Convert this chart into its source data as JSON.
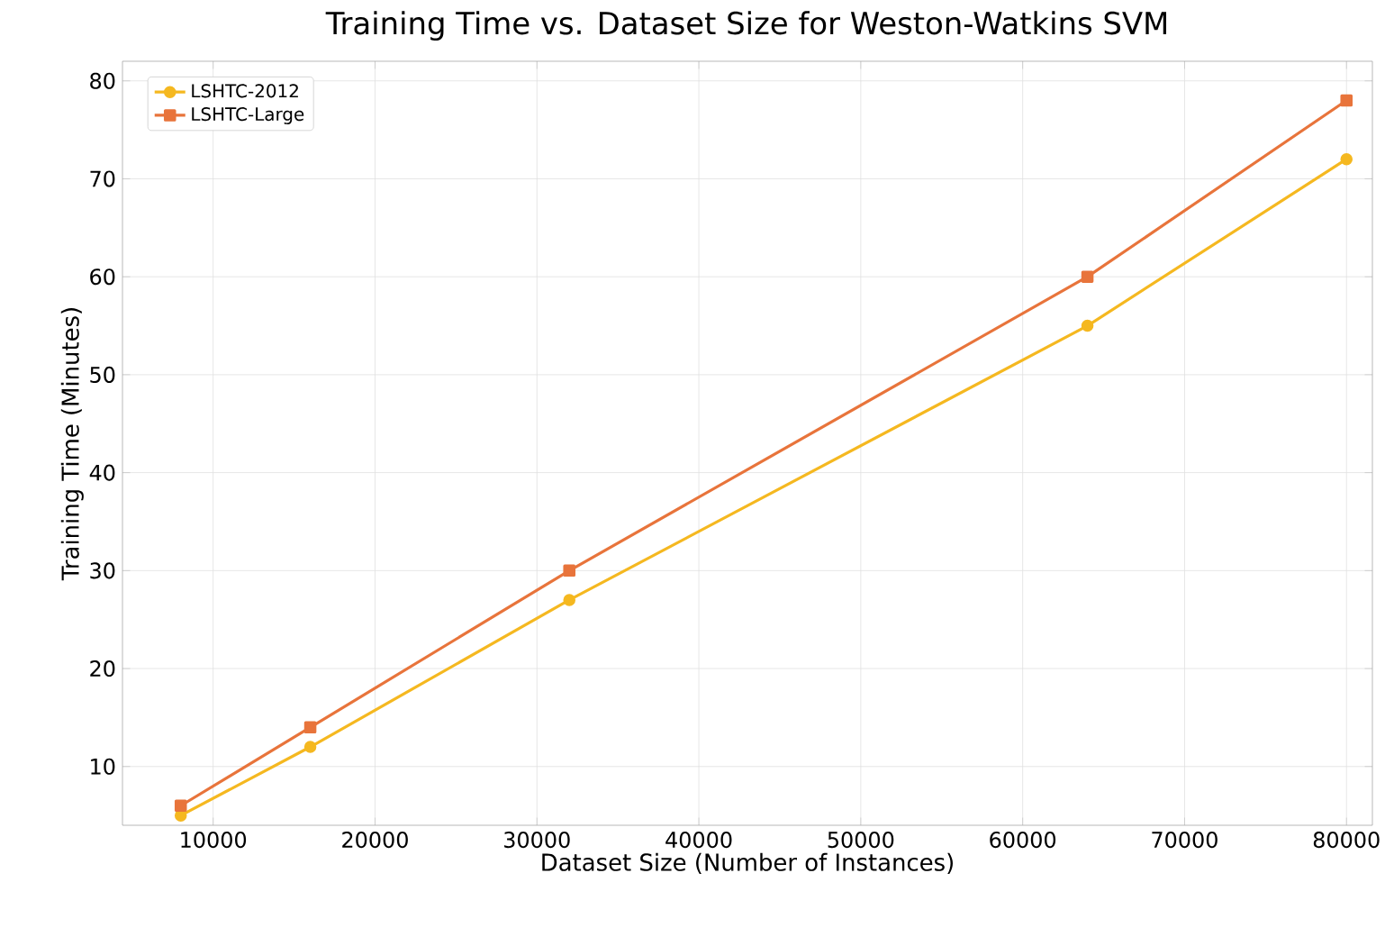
{
  "chart_data": {
    "type": "line",
    "title": "Training Time vs. Dataset Size for Weston-Watkins SVM",
    "xlabel": "Dataset Size (Number of Instances)",
    "ylabel": "Training Time (Minutes)",
    "x": [
      8000,
      16000,
      32000,
      64000,
      80000
    ],
    "series": [
      {
        "name": "LSHTC-2012",
        "color": "#f5b820",
        "marker": "circle",
        "values": [
          5,
          12,
          27,
          55,
          72
        ]
      },
      {
        "name": "LSHTC-Large",
        "color": "#e8743b",
        "marker": "square",
        "values": [
          6,
          14,
          30,
          60,
          78
        ]
      }
    ],
    "xlim": [
      4400,
      81600
    ],
    "xticks": [
      10000,
      20000,
      30000,
      40000,
      50000,
      60000,
      70000,
      80000
    ],
    "ylim": [
      4,
      82
    ],
    "yticks": [
      10,
      20,
      30,
      40,
      50,
      60,
      70,
      80
    ],
    "grid": true,
    "legend": "top left",
    "line_style": "solid"
  }
}
